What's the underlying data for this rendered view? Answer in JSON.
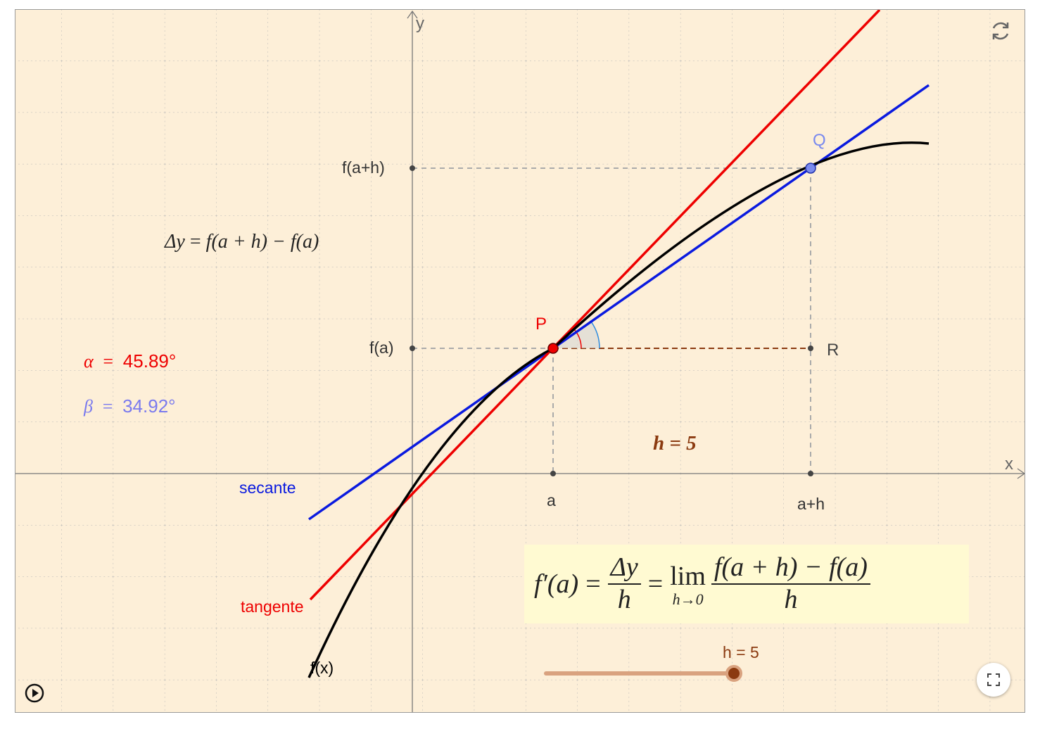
{
  "axes": {
    "x_label": "x",
    "y_label": "y"
  },
  "ticks": {
    "x_a": "a",
    "x_a_plus_h": "a+h",
    "y_fa": "f(a)",
    "y_fa_plus_h": "f(a+h)"
  },
  "points": {
    "P": "P",
    "Q": "Q",
    "R": "R"
  },
  "curves": {
    "function": {
      "label": "f(x)",
      "color": "#000000"
    },
    "tangent": {
      "label": "tangente",
      "color": "#ee0000"
    },
    "secant": {
      "label": "secante",
      "color": "#0a1adf"
    }
  },
  "angles": {
    "alpha": {
      "symbol": "α",
      "value": "45.89°",
      "color": "#ee0000"
    },
    "beta": {
      "symbol": "β",
      "value": "34.92°",
      "color": "#7a7aee"
    }
  },
  "delta_y": {
    "lhs": "Δy",
    "rhs": "f(a + h) − f(a)"
  },
  "h_label": {
    "text": "h = 5",
    "color": "#8b3a10"
  },
  "formula": {
    "lhs": "f′(a)",
    "frac1_num": "Δy",
    "frac1_den": "h",
    "lim": "lim",
    "lim_sub": "h→0",
    "frac2_num": "f(a + h) − f(a)",
    "frac2_den": "h"
  },
  "slider": {
    "label": "h = 5",
    "value": 5,
    "min": 0,
    "max": 5,
    "color": "#d9a27f",
    "knob_color": "#8b3a10"
  },
  "colors": {
    "background": "#fdefd8",
    "grid": "#b4b4b4",
    "formula_bg": "#fffad2",
    "axis": "#777777"
  },
  "controls": {
    "refresh": "refresh-icon",
    "fullscreen": "fullscreen-icon",
    "play": "play-icon"
  }
}
